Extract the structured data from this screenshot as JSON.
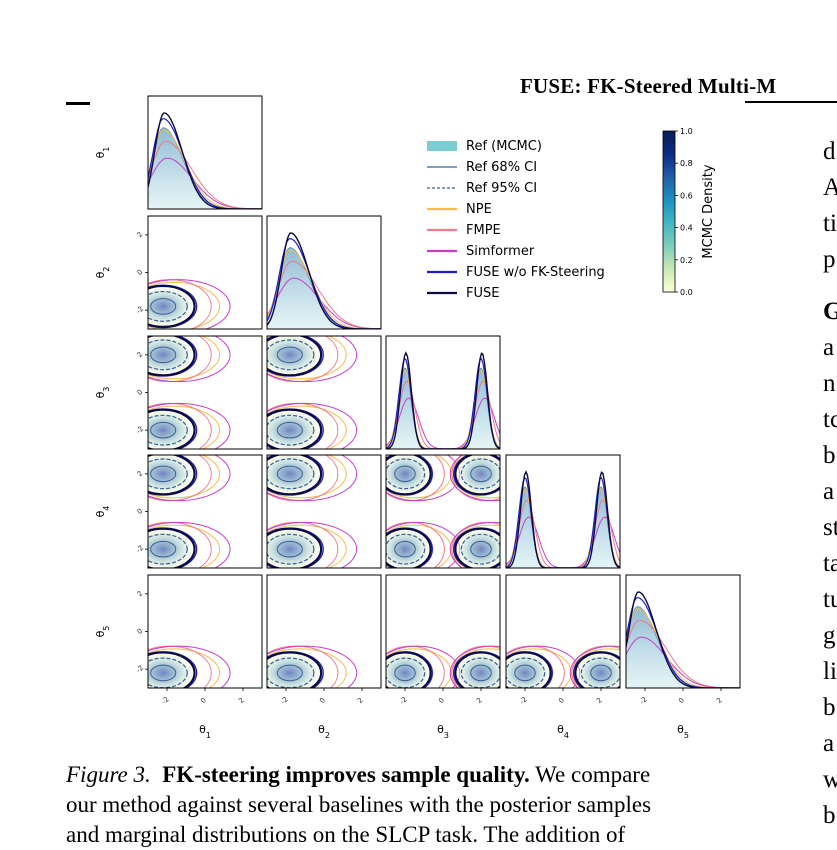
{
  "header": {
    "title": "FUSE: FK-Steered Multi-M"
  },
  "right_column": [
    "d",
    "A",
    "ti",
    "p",
    "G",
    "a",
    "n",
    "tc",
    "b",
    "a",
    "st",
    "ta",
    "tu",
    "g",
    "li",
    "b",
    "a",
    "w",
    "b"
  ],
  "caption": {
    "label": "Figure 3.",
    "bold": "FK-steering improves sample quality.",
    "line1_rest": "We compare",
    "line2": "our method against several baselines with the posterior samples",
    "line3": "and marginal distributions on the SLCP task. The addition of"
  },
  "chart_data": {
    "type": "corner",
    "parameters": [
      "θ1",
      "θ2",
      "θ3",
      "θ4",
      "θ5"
    ],
    "param_labels": [
      {
        "sym": "θ",
        "sub": "1"
      },
      {
        "sym": "θ",
        "sub": "2"
      },
      {
        "sym": "θ",
        "sub": "3"
      },
      {
        "sym": "θ",
        "sub": "4"
      },
      {
        "sym": "θ",
        "sub": "5"
      }
    ],
    "ticks": [
      "-2",
      "0",
      "2"
    ],
    "tick_values": [
      -2,
      0,
      2
    ],
    "axis_range": [
      -3,
      3
    ],
    "legend": {
      "placement": "upper-right",
      "entries": [
        {
          "label": "Ref (MCMC)",
          "style": "patch",
          "color": "#7cccd4"
        },
        {
          "label": "Ref 68% CI",
          "style": "solid",
          "color": "#3a5f8f"
        },
        {
          "label": "Ref 95% CI",
          "style": "dashed",
          "color": "#3a5f8f"
        },
        {
          "label": "NPE",
          "style": "solid",
          "color": "#f6bd4a"
        },
        {
          "label": "FMPE",
          "style": "solid",
          "color": "#ee7a8c"
        },
        {
          "label": "Simformer",
          "style": "solid",
          "color": "#c63fc8"
        },
        {
          "label": "FUSE w/o FK-Steering",
          "style": "solid",
          "color": "#1f1fc4"
        },
        {
          "label": "FUSE",
          "style": "solid",
          "color": "#0b0b3f"
        }
      ]
    },
    "colorbar": {
      "label": "MCMC Density",
      "ticks": [
        "0.0",
        "0.2",
        "0.4",
        "0.6",
        "0.8",
        "1.0"
      ],
      "range": [
        0,
        1
      ],
      "colormap": [
        "#ffffd9",
        "#c7e9b4",
        "#7fcdbb",
        "#41b6c4",
        "#1d91c0",
        "#225ea8",
        "#0c2c84",
        "#081d58"
      ]
    },
    "marginal_modes": {
      "θ1": [
        -2.2
      ],
      "θ2": [
        -1.8
      ],
      "θ3": [
        -2.0,
        2.0
      ],
      "θ4": [
        -2.0,
        2.0
      ],
      "θ5": [
        -2.4
      ]
    }
  }
}
